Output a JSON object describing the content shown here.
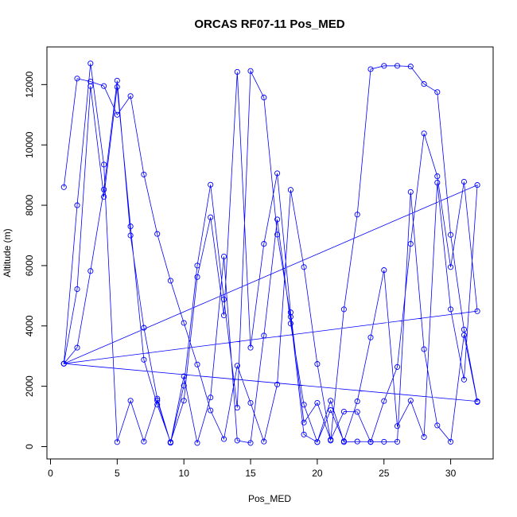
{
  "chart_data": {
    "type": "line",
    "title": "ORCAS RF07-11 Pos_MED",
    "xlabel": "Pos_MED",
    "ylabel": "Altitude (m)",
    "xlim": [
      0,
      33
    ],
    "ylim": [
      0,
      12700
    ],
    "x_ticks": [
      0,
      5,
      10,
      15,
      20,
      25,
      30
    ],
    "y_ticks": [
      0,
      2000,
      4000,
      6000,
      8000,
      10000,
      12000
    ],
    "grid": false,
    "legend": "none",
    "color": "#0000ff",
    "points": [
      [
        1,
        8600
      ],
      [
        2,
        12200
      ],
      [
        3,
        12100
      ],
      [
        4,
        11950
      ],
      [
        5,
        11000
      ],
      [
        6,
        11620
      ],
      [
        7,
        9020
      ],
      [
        8,
        7050
      ],
      [
        9,
        5500
      ],
      [
        10,
        4100
      ],
      [
        11,
        2720
      ],
      [
        12,
        1200
      ],
      [
        13,
        250
      ],
      [
        14,
        2680
      ],
      [
        15,
        1450
      ],
      [
        16,
        170
      ],
      [
        17,
        2060
      ],
      [
        18,
        8510
      ],
      [
        19,
        5950
      ],
      [
        20,
        2740
      ],
      [
        21,
        200
      ],
      [
        22,
        4550
      ],
      [
        23,
        7690
      ],
      [
        24,
        12510
      ],
      [
        25,
        12620
      ],
      [
        26,
        12620
      ],
      [
        27,
        12600
      ],
      [
        28,
        12020
      ],
      [
        29,
        11750
      ],
      [
        30,
        7020
      ],
      [
        31,
        3880
      ],
      [
        32,
        1500
      ],
      [
        1,
        2750
      ],
      [
        2,
        8000
      ],
      [
        3,
        12700
      ],
      [
        4,
        9350
      ],
      [
        5,
        150
      ],
      [
        6,
        1520
      ],
      [
        7,
        170
      ],
      [
        8,
        1530
      ],
      [
        9,
        130
      ],
      [
        10,
        2020
      ],
      [
        11,
        6000
      ],
      [
        12,
        8680
      ],
      [
        13,
        4880
      ],
      [
        14,
        1290
      ],
      [
        15,
        12450
      ],
      [
        16,
        11570
      ],
      [
        17,
        7030
      ],
      [
        18,
        4300
      ],
      [
        19,
        400
      ],
      [
        20,
        150
      ],
      [
        21,
        1210
      ],
      [
        22,
        180
      ],
      [
        23,
        1500
      ],
      [
        24,
        3620
      ],
      [
        25,
        5850
      ],
      [
        26,
        680
      ],
      [
        27,
        1520
      ],
      [
        28,
        320
      ],
      [
        29,
        8750
      ],
      [
        30,
        4550
      ],
      [
        31,
        2220
      ],
      [
        32,
        8670
      ],
      [
        1,
        2750
      ],
      [
        2,
        5220
      ],
      [
        3,
        11950
      ],
      [
        4,
        8280
      ],
      [
        5,
        11920
      ],
      [
        6,
        7300
      ],
      [
        7,
        2880
      ],
      [
        8,
        1390
      ],
      [
        9,
        150
      ],
      [
        10,
        1520
      ],
      [
        11,
        5620
      ],
      [
        12,
        7600
      ],
      [
        13,
        4350
      ],
      [
        14,
        12420
      ],
      [
        15,
        3280
      ],
      [
        16,
        6720
      ],
      [
        17,
        9060
      ],
      [
        18,
        4450
      ],
      [
        19,
        800
      ],
      [
        20,
        1450
      ],
      [
        21,
        230
      ],
      [
        22,
        1160
      ],
      [
        23,
        1150
      ],
      [
        24,
        150
      ],
      [
        25,
        1510
      ],
      [
        26,
        2640
      ],
      [
        27,
        6720
      ],
      [
        28,
        10380
      ],
      [
        29,
        8960
      ],
      [
        30,
        5950
      ],
      [
        31,
        8780
      ],
      [
        32,
        4490
      ],
      [
        1,
        2750
      ],
      [
        2,
        3280
      ],
      [
        3,
        5820
      ],
      [
        4,
        8520
      ],
      [
        5,
        12130
      ],
      [
        6,
        7000
      ],
      [
        7,
        3940
      ],
      [
        8,
        1590
      ],
      [
        9,
        130
      ],
      [
        10,
        2330
      ],
      [
        11,
        120
      ],
      [
        12,
        1630
      ],
      [
        13,
        6300
      ],
      [
        14,
        200
      ],
      [
        15,
        120
      ],
      [
        16,
        3680
      ],
      [
        17,
        7530
      ],
      [
        18,
        4080
      ],
      [
        19,
        1390
      ],
      [
        20,
        150
      ],
      [
        21,
        1520
      ],
      [
        22,
        150
      ],
      [
        23,
        170
      ],
      [
        24,
        160
      ],
      [
        25,
        160
      ],
      [
        26,
        160
      ],
      [
        27,
        8440
      ],
      [
        28,
        3230
      ],
      [
        29,
        700
      ],
      [
        30,
        160
      ],
      [
        31,
        3700
      ],
      [
        32,
        1480
      ]
    ]
  }
}
